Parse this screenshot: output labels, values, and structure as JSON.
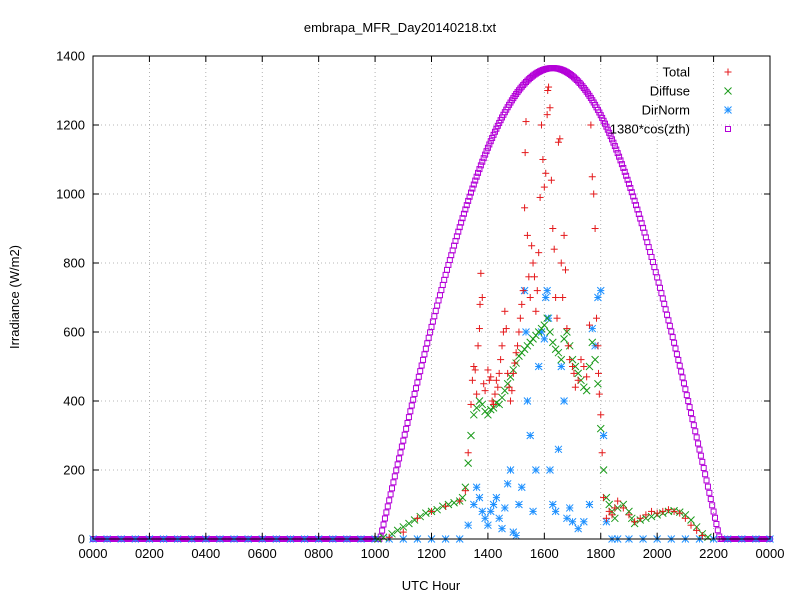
{
  "chart_data": {
    "type": "scatter",
    "title": "embrapa_MFR_Day20140218.txt",
    "xlabel": "UTC Hour",
    "ylabel": "Irradiance (W/m2)",
    "xlim": [
      0,
      24
    ],
    "ylim": [
      0,
      1400
    ],
    "x_ticks": [
      {
        "value": 0,
        "label": "0000"
      },
      {
        "value": 2,
        "label": "0200"
      },
      {
        "value": 4,
        "label": "0400"
      },
      {
        "value": 6,
        "label": "0600"
      },
      {
        "value": 8,
        "label": "0800"
      },
      {
        "value": 10,
        "label": "1000"
      },
      {
        "value": 12,
        "label": "1200"
      },
      {
        "value": 14,
        "label": "1400"
      },
      {
        "value": 16,
        "label": "1600"
      },
      {
        "value": 18,
        "label": "1800"
      },
      {
        "value": 20,
        "label": "2000"
      },
      {
        "value": 22,
        "label": "2200"
      },
      {
        "value": 24,
        "label": "0000"
      }
    ],
    "y_ticks": [
      {
        "value": 0,
        "label": "0"
      },
      {
        "value": 200,
        "label": "200"
      },
      {
        "value": 400,
        "label": "400"
      },
      {
        "value": 600,
        "label": "600"
      },
      {
        "value": 800,
        "label": "800"
      },
      {
        "value": 1000,
        "label": "1000"
      },
      {
        "value": 1200,
        "label": "1200"
      },
      {
        "value": 1400,
        "label": "1400"
      }
    ],
    "grid": true,
    "legend_position": "top-right",
    "series": [
      {
        "name": "Total",
        "marker": "plus",
        "color": "#e41a1c",
        "points": [
          [
            10.5,
            5
          ],
          [
            11.0,
            20
          ],
          [
            11.5,
            60
          ],
          [
            12.0,
            80
          ],
          [
            12.5,
            95
          ],
          [
            13.0,
            110
          ],
          [
            13.2,
            140
          ],
          [
            13.3,
            250
          ],
          [
            13.4,
            390
          ],
          [
            13.45,
            460
          ],
          [
            13.5,
            500
          ],
          [
            13.55,
            490
          ],
          [
            13.6,
            420
          ],
          [
            13.65,
            560
          ],
          [
            13.7,
            610
          ],
          [
            13.72,
            680
          ],
          [
            13.75,
            770
          ],
          [
            13.8,
            700
          ],
          [
            13.85,
            450
          ],
          [
            13.9,
            430
          ],
          [
            14.0,
            490
          ],
          [
            14.05,
            460
          ],
          [
            14.1,
            470
          ],
          [
            14.15,
            400
          ],
          [
            14.2,
            390
          ],
          [
            14.25,
            420
          ],
          [
            14.3,
            460
          ],
          [
            14.35,
            440
          ],
          [
            14.4,
            480
          ],
          [
            14.45,
            520
          ],
          [
            14.5,
            560
          ],
          [
            14.55,
            600
          ],
          [
            14.6,
            660
          ],
          [
            14.65,
            610
          ],
          [
            14.7,
            480
          ],
          [
            14.75,
            440
          ],
          [
            14.8,
            400
          ],
          [
            14.85,
            430
          ],
          [
            14.9,
            480
          ],
          [
            14.95,
            510
          ],
          [
            15.0,
            540
          ],
          [
            15.05,
            560
          ],
          [
            15.1,
            600
          ],
          [
            15.15,
            640
          ],
          [
            15.2,
            680
          ],
          [
            15.25,
            720
          ],
          [
            15.3,
            960
          ],
          [
            15.32,
            1120
          ],
          [
            15.35,
            1210
          ],
          [
            15.4,
            880
          ],
          [
            15.45,
            760
          ],
          [
            15.5,
            700
          ],
          [
            15.55,
            850
          ],
          [
            15.6,
            800
          ],
          [
            15.65,
            760
          ],
          [
            15.7,
            660
          ],
          [
            15.75,
            720
          ],
          [
            15.8,
            830
          ],
          [
            15.85,
            990
          ],
          [
            15.9,
            1200
          ],
          [
            15.95,
            1100
          ],
          [
            16.0,
            1020
          ],
          [
            16.05,
            1060
          ],
          [
            16.1,
            1230
          ],
          [
            16.12,
            1300
          ],
          [
            16.15,
            1310
          ],
          [
            16.2,
            1250
          ],
          [
            16.25,
            1040
          ],
          [
            16.3,
            900
          ],
          [
            16.35,
            840
          ],
          [
            16.4,
            700
          ],
          [
            16.45,
            640
          ],
          [
            16.5,
            1150
          ],
          [
            16.55,
            1160
          ],
          [
            16.6,
            800
          ],
          [
            16.65,
            700
          ],
          [
            16.7,
            880
          ],
          [
            16.75,
            780
          ],
          [
            16.8,
            610
          ],
          [
            16.85,
            560
          ],
          [
            16.9,
            520
          ],
          [
            17.0,
            500
          ],
          [
            17.05,
            480
          ],
          [
            17.1,
            440
          ],
          [
            17.2,
            460
          ],
          [
            17.3,
            520
          ],
          [
            17.4,
            500
          ],
          [
            17.5,
            470
          ],
          [
            17.6,
            620
          ],
          [
            17.65,
            1200
          ],
          [
            17.7,
            1050
          ],
          [
            17.75,
            1000
          ],
          [
            17.8,
            900
          ],
          [
            17.85,
            640
          ],
          [
            17.9,
            560
          ],
          [
            17.92,
            480
          ],
          [
            17.95,
            420
          ],
          [
            18.0,
            360
          ],
          [
            18.05,
            250
          ],
          [
            18.1,
            120
          ],
          [
            18.2,
            60
          ],
          [
            18.3,
            80
          ],
          [
            18.4,
            70
          ],
          [
            18.5,
            90
          ],
          [
            18.6,
            110
          ],
          [
            18.8,
            90
          ],
          [
            19.0,
            70
          ],
          [
            19.2,
            50
          ],
          [
            19.4,
            60
          ],
          [
            19.6,
            70
          ],
          [
            19.8,
            80
          ],
          [
            20.0,
            75
          ],
          [
            20.2,
            80
          ],
          [
            20.4,
            85
          ],
          [
            20.6,
            80
          ],
          [
            20.8,
            75
          ],
          [
            21.0,
            60
          ],
          [
            21.2,
            40
          ],
          [
            21.4,
            25
          ],
          [
            21.6,
            10
          ]
        ]
      },
      {
        "name": "Diffuse",
        "marker": "cross",
        "color": "#1a9a1a",
        "points": [
          [
            10.1,
            0
          ],
          [
            10.3,
            5
          ],
          [
            10.6,
            15
          ],
          [
            10.8,
            25
          ],
          [
            11.0,
            35
          ],
          [
            11.2,
            45
          ],
          [
            11.4,
            55
          ],
          [
            11.6,
            65
          ],
          [
            11.8,
            75
          ],
          [
            12.0,
            80
          ],
          [
            12.2,
            85
          ],
          [
            12.4,
            95
          ],
          [
            12.6,
            100
          ],
          [
            12.8,
            105
          ],
          [
            13.0,
            110
          ],
          [
            13.1,
            120
          ],
          [
            13.2,
            150
          ],
          [
            13.3,
            220
          ],
          [
            13.4,
            300
          ],
          [
            13.5,
            360
          ],
          [
            13.6,
            380
          ],
          [
            13.7,
            400
          ],
          [
            13.8,
            390
          ],
          [
            13.9,
            370
          ],
          [
            14.0,
            360
          ],
          [
            14.1,
            375
          ],
          [
            14.2,
            380
          ],
          [
            14.3,
            395
          ],
          [
            14.4,
            390
          ],
          [
            14.5,
            410
          ],
          [
            14.6,
            430
          ],
          [
            14.7,
            450
          ],
          [
            14.8,
            470
          ],
          [
            14.9,
            490
          ],
          [
            15.0,
            510
          ],
          [
            15.1,
            530
          ],
          [
            15.2,
            540
          ],
          [
            15.3,
            550
          ],
          [
            15.4,
            560
          ],
          [
            15.5,
            570
          ],
          [
            15.6,
            580
          ],
          [
            15.7,
            590
          ],
          [
            15.8,
            600
          ],
          [
            15.9,
            610
          ],
          [
            16.0,
            620
          ],
          [
            16.1,
            640
          ],
          [
            16.2,
            600
          ],
          [
            16.3,
            570
          ],
          [
            16.4,
            550
          ],
          [
            16.5,
            540
          ],
          [
            16.6,
            520
          ],
          [
            16.7,
            580
          ],
          [
            16.8,
            600
          ],
          [
            16.9,
            560
          ],
          [
            17.0,
            520
          ],
          [
            17.1,
            500
          ],
          [
            17.2,
            480
          ],
          [
            17.3,
            460
          ],
          [
            17.4,
            440
          ],
          [
            17.5,
            430
          ],
          [
            17.6,
            500
          ],
          [
            17.7,
            570
          ],
          [
            17.8,
            520
          ],
          [
            17.9,
            450
          ],
          [
            18.0,
            320
          ],
          [
            18.1,
            200
          ],
          [
            18.2,
            120
          ],
          [
            18.3,
            100
          ],
          [
            18.4,
            80
          ],
          [
            18.5,
            60
          ],
          [
            18.6,
            90
          ],
          [
            18.8,
            100
          ],
          [
            19.0,
            80
          ],
          [
            19.1,
            60
          ],
          [
            19.2,
            45
          ],
          [
            19.4,
            55
          ],
          [
            19.6,
            60
          ],
          [
            19.8,
            65
          ],
          [
            20.0,
            70
          ],
          [
            20.2,
            75
          ],
          [
            20.4,
            80
          ],
          [
            20.6,
            82
          ],
          [
            20.8,
            78
          ],
          [
            21.0,
            70
          ],
          [
            21.2,
            55
          ],
          [
            21.4,
            35
          ],
          [
            21.6,
            15
          ],
          [
            21.8,
            5
          ]
        ]
      },
      {
        "name": "DirNorm",
        "marker": "star",
        "color": "#1e90ff",
        "points": [
          [
            0.0,
            0
          ],
          [
            0.5,
            0
          ],
          [
            1.0,
            0
          ],
          [
            1.5,
            0
          ],
          [
            2.0,
            0
          ],
          [
            2.5,
            0
          ],
          [
            3.0,
            0
          ],
          [
            3.5,
            0
          ],
          [
            4.0,
            0
          ],
          [
            4.5,
            0
          ],
          [
            5.0,
            0
          ],
          [
            5.5,
            0
          ],
          [
            6.0,
            0
          ],
          [
            6.5,
            0
          ],
          [
            7.0,
            0
          ],
          [
            7.5,
            0
          ],
          [
            8.0,
            0
          ],
          [
            8.5,
            0
          ],
          [
            9.0,
            0
          ],
          [
            9.5,
            0
          ],
          [
            10.0,
            0
          ],
          [
            10.5,
            0
          ],
          [
            11.0,
            0
          ],
          [
            11.5,
            0
          ],
          [
            12.0,
            0
          ],
          [
            12.5,
            0
          ],
          [
            13.0,
            0
          ],
          [
            13.3,
            40
          ],
          [
            13.5,
            100
          ],
          [
            13.6,
            150
          ],
          [
            13.7,
            120
          ],
          [
            13.8,
            80
          ],
          [
            13.9,
            60
          ],
          [
            14.0,
            40
          ],
          [
            14.1,
            80
          ],
          [
            14.2,
            100
          ],
          [
            14.3,
            120
          ],
          [
            14.4,
            60
          ],
          [
            14.5,
            30
          ],
          [
            14.6,
            90
          ],
          [
            14.7,
            160
          ],
          [
            14.8,
            200
          ],
          [
            14.9,
            20
          ],
          [
            15.0,
            10
          ],
          [
            15.1,
            100
          ],
          [
            15.2,
            150
          ],
          [
            15.3,
            720
          ],
          [
            15.35,
            600
          ],
          [
            15.4,
            400
          ],
          [
            15.5,
            300
          ],
          [
            15.6,
            80
          ],
          [
            15.7,
            200
          ],
          [
            15.8,
            500
          ],
          [
            15.9,
            600
          ],
          [
            16.0,
            580
          ],
          [
            16.05,
            700
          ],
          [
            16.1,
            720
          ],
          [
            16.15,
            640
          ],
          [
            16.2,
            200
          ],
          [
            16.3,
            100
          ],
          [
            16.4,
            80
          ],
          [
            16.5,
            260
          ],
          [
            16.6,
            500
          ],
          [
            16.7,
            400
          ],
          [
            16.8,
            60
          ],
          [
            16.9,
            90
          ],
          [
            17.0,
            50
          ],
          [
            17.2,
            30
          ],
          [
            17.4,
            50
          ],
          [
            17.6,
            100
          ],
          [
            17.7,
            610
          ],
          [
            17.8,
            560
          ],
          [
            17.9,
            700
          ],
          [
            18.0,
            720
          ],
          [
            18.1,
            300
          ],
          [
            18.2,
            50
          ],
          [
            18.4,
            0
          ],
          [
            18.6,
            0
          ],
          [
            19.0,
            0
          ],
          [
            19.5,
            0
          ],
          [
            20.0,
            0
          ],
          [
            20.5,
            0
          ],
          [
            21.0,
            0
          ],
          [
            21.5,
            0
          ],
          [
            22.0,
            0
          ],
          [
            22.5,
            0
          ],
          [
            23.0,
            0
          ],
          [
            23.5,
            0
          ],
          [
            24.0,
            0
          ]
        ]
      },
      {
        "name": "1380*cos(zth)",
        "marker": "square",
        "color": "#b400d8",
        "curve": {
          "amplitude": 1365,
          "day_start": 10.18,
          "day_end": 22.22,
          "peak_hour": 16.3,
          "step_hours": 0.05,
          "range": [
            0,
            24
          ]
        }
      }
    ]
  }
}
